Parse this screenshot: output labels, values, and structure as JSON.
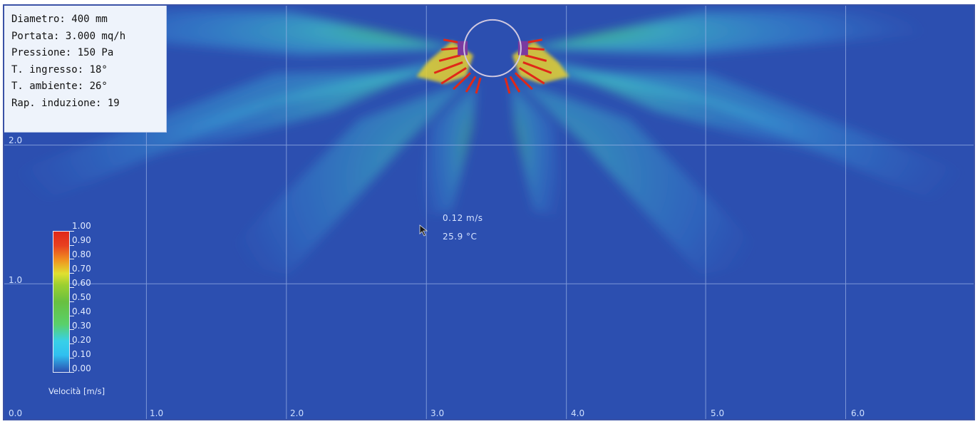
{
  "info_panel": {
    "lines": [
      "Diametro: 400 mm",
      "Portata: 3.000 mq/h",
      "Pressione: 150 Pa",
      "T. ingresso: 18°",
      "T. ambiente: 26°",
      "Rap. induzione: 19"
    ]
  },
  "grid": {
    "x_labels": [
      "0.0",
      "1.0",
      "2.0",
      "3.0",
      "4.0",
      "5.0",
      "6.0"
    ],
    "y_labels": [
      "2.0",
      "1.0"
    ]
  },
  "probe": {
    "velocity": "0.12 m/s",
    "temperature": "25.9 °C"
  },
  "color_scale": {
    "title": "Velocità [m/s]",
    "ticks": [
      "1.00",
      "0.90",
      "0.80",
      "0.70",
      "0.60",
      "0.50",
      "0.40",
      "0.30",
      "0.20",
      "0.10",
      "0.00"
    ]
  },
  "colors": {
    "background": "#2c4fb0",
    "border": "#3a52a6",
    "jet_low": "#30c0f0",
    "jet_mid": "#5ad06a",
    "jet_high": "#e02818"
  },
  "icons": {
    "cursor": "arrow-cursor-icon",
    "diffuser": "circle-diffuser-icon"
  }
}
